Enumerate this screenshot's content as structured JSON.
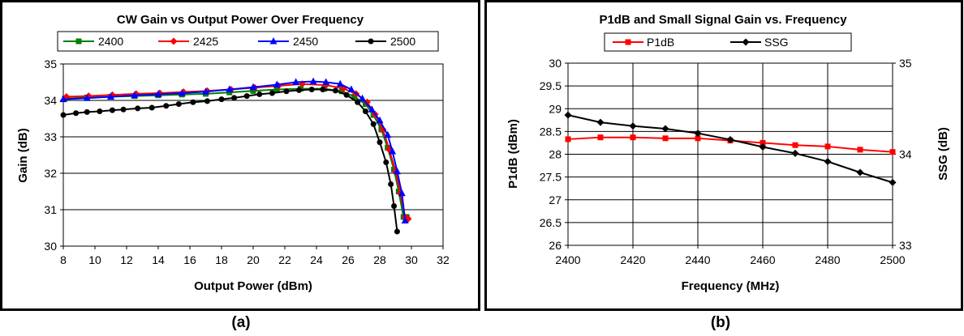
{
  "chart_data": [
    {
      "type": "line",
      "title": "CW Gain vs Output Power Over Frequency",
      "xlabel": "Output Power (dBm)",
      "ylabel": "Gain (dB)",
      "xlim": [
        8,
        32
      ],
      "ylim": [
        30,
        35
      ],
      "xticks": [
        "8",
        "10",
        "12",
        "14",
        "16",
        "18",
        "20",
        "22",
        "24",
        "26",
        "28",
        "30",
        "32"
      ],
      "yticks": [
        "30",
        "31",
        "32",
        "33",
        "34",
        "35"
      ],
      "grid": "horizontal",
      "legend": "top",
      "series": [
        {
          "name": "2400",
          "color": "#008000",
          "marker": "square",
          "x": [
            8.1,
            9.5,
            11.0,
            12.5,
            14.0,
            15.5,
            17.0,
            18.5,
            20.0,
            21.5,
            23.0,
            24.5,
            25.6,
            26.4,
            27.1,
            27.6,
            28.1,
            28.5,
            28.9,
            29.2,
            29.5,
            29.7
          ],
          "y": [
            34.05,
            34.08,
            34.1,
            34.12,
            34.14,
            34.16,
            34.18,
            34.22,
            34.26,
            34.3,
            34.32,
            34.32,
            34.25,
            34.1,
            33.9,
            33.6,
            33.2,
            32.7,
            32.1,
            31.5,
            30.8,
            30.8
          ]
        },
        {
          "name": "2425",
          "color": "#ff0000",
          "marker": "diamond",
          "x": [
            8.2,
            9.6,
            11.1,
            12.6,
            14.1,
            15.6,
            17.1,
            18.6,
            20.1,
            21.6,
            23.1,
            24.6,
            25.7,
            26.5,
            27.2,
            27.7,
            28.2,
            28.6,
            29.0,
            29.3,
            29.6,
            29.8
          ],
          "y": [
            34.1,
            34.12,
            34.15,
            34.18,
            34.2,
            34.23,
            34.26,
            34.3,
            34.35,
            34.4,
            34.45,
            34.42,
            34.33,
            34.18,
            33.95,
            33.62,
            33.2,
            32.65,
            32.05,
            31.45,
            30.8,
            30.75
          ]
        },
        {
          "name": "2450",
          "color": "#0000ff",
          "marker": "triangle",
          "x": [
            8.0,
            9.5,
            11.0,
            12.5,
            14.0,
            15.5,
            17.0,
            18.5,
            20.0,
            21.5,
            22.7,
            23.8,
            24.6,
            25.5,
            26.2,
            26.9,
            27.5,
            28.0,
            28.5,
            28.8,
            29.1,
            29.4,
            29.6
          ],
          "y": [
            34.03,
            34.06,
            34.1,
            34.14,
            34.17,
            34.2,
            34.24,
            34.3,
            34.36,
            34.43,
            34.5,
            34.52,
            34.5,
            34.45,
            34.3,
            34.05,
            33.75,
            33.45,
            33.05,
            32.6,
            32.05,
            31.45,
            30.7
          ]
        },
        {
          "name": "2500",
          "color": "#000000",
          "marker": "circle",
          "x": [
            8.0,
            8.8,
            9.5,
            10.3,
            11.1,
            11.8,
            12.7,
            13.6,
            14.5,
            15.3,
            16.2,
            17.1,
            18.0,
            18.8,
            19.6,
            20.4,
            21.2,
            22.1,
            22.9,
            23.7,
            24.4,
            25.2,
            25.9,
            26.6,
            27.1,
            27.6,
            28.0,
            28.4,
            28.7,
            28.9,
            29.1
          ],
          "y": [
            33.6,
            33.65,
            33.68,
            33.7,
            33.73,
            33.75,
            33.78,
            33.8,
            33.85,
            33.9,
            33.95,
            33.98,
            34.03,
            34.07,
            34.12,
            34.17,
            34.2,
            34.25,
            34.28,
            34.3,
            34.3,
            34.27,
            34.15,
            33.95,
            33.7,
            33.35,
            32.85,
            32.3,
            31.7,
            31.1,
            30.4
          ]
        }
      ]
    },
    {
      "type": "line",
      "title": "P1dB and Small Signal Gain vs. Frequency",
      "xlabel": "Frequency (MHz)",
      "ylabel": "P1dB (dBm)",
      "y2label": "SSG (dB)",
      "xlim": [
        2400,
        2500
      ],
      "ylim": [
        26,
        30
      ],
      "y2lim": [
        33,
        35
      ],
      "xticks": [
        "2400",
        "2420",
        "2440",
        "2460",
        "2480",
        "2500"
      ],
      "yticks": [
        "26",
        "26.5",
        "27",
        "27.5",
        "28",
        "28.5",
        "29",
        "29.5",
        "30"
      ],
      "y2ticks": [
        "33",
        "34",
        "35"
      ],
      "grid": "both",
      "legend": "top",
      "series": [
        {
          "name": "P1dB",
          "color": "#ff0000",
          "marker": "square",
          "axis": "left",
          "x": [
            2400,
            2410,
            2420,
            2430,
            2440,
            2450,
            2460,
            2470,
            2480,
            2490,
            2500
          ],
          "y": [
            28.33,
            28.37,
            28.37,
            28.35,
            28.35,
            28.3,
            28.25,
            28.2,
            28.17,
            28.1,
            28.05
          ]
        },
        {
          "name": "SSG",
          "color": "#000000",
          "marker": "diamond",
          "axis": "right",
          "x": [
            2400,
            2410,
            2420,
            2430,
            2440,
            2450,
            2460,
            2470,
            2480,
            2490,
            2500
          ],
          "y": [
            34.43,
            34.35,
            34.31,
            34.28,
            34.23,
            34.16,
            34.08,
            34.01,
            33.92,
            33.8,
            33.69
          ]
        }
      ]
    }
  ],
  "captions": {
    "a": "(a)",
    "b": "(b)"
  }
}
